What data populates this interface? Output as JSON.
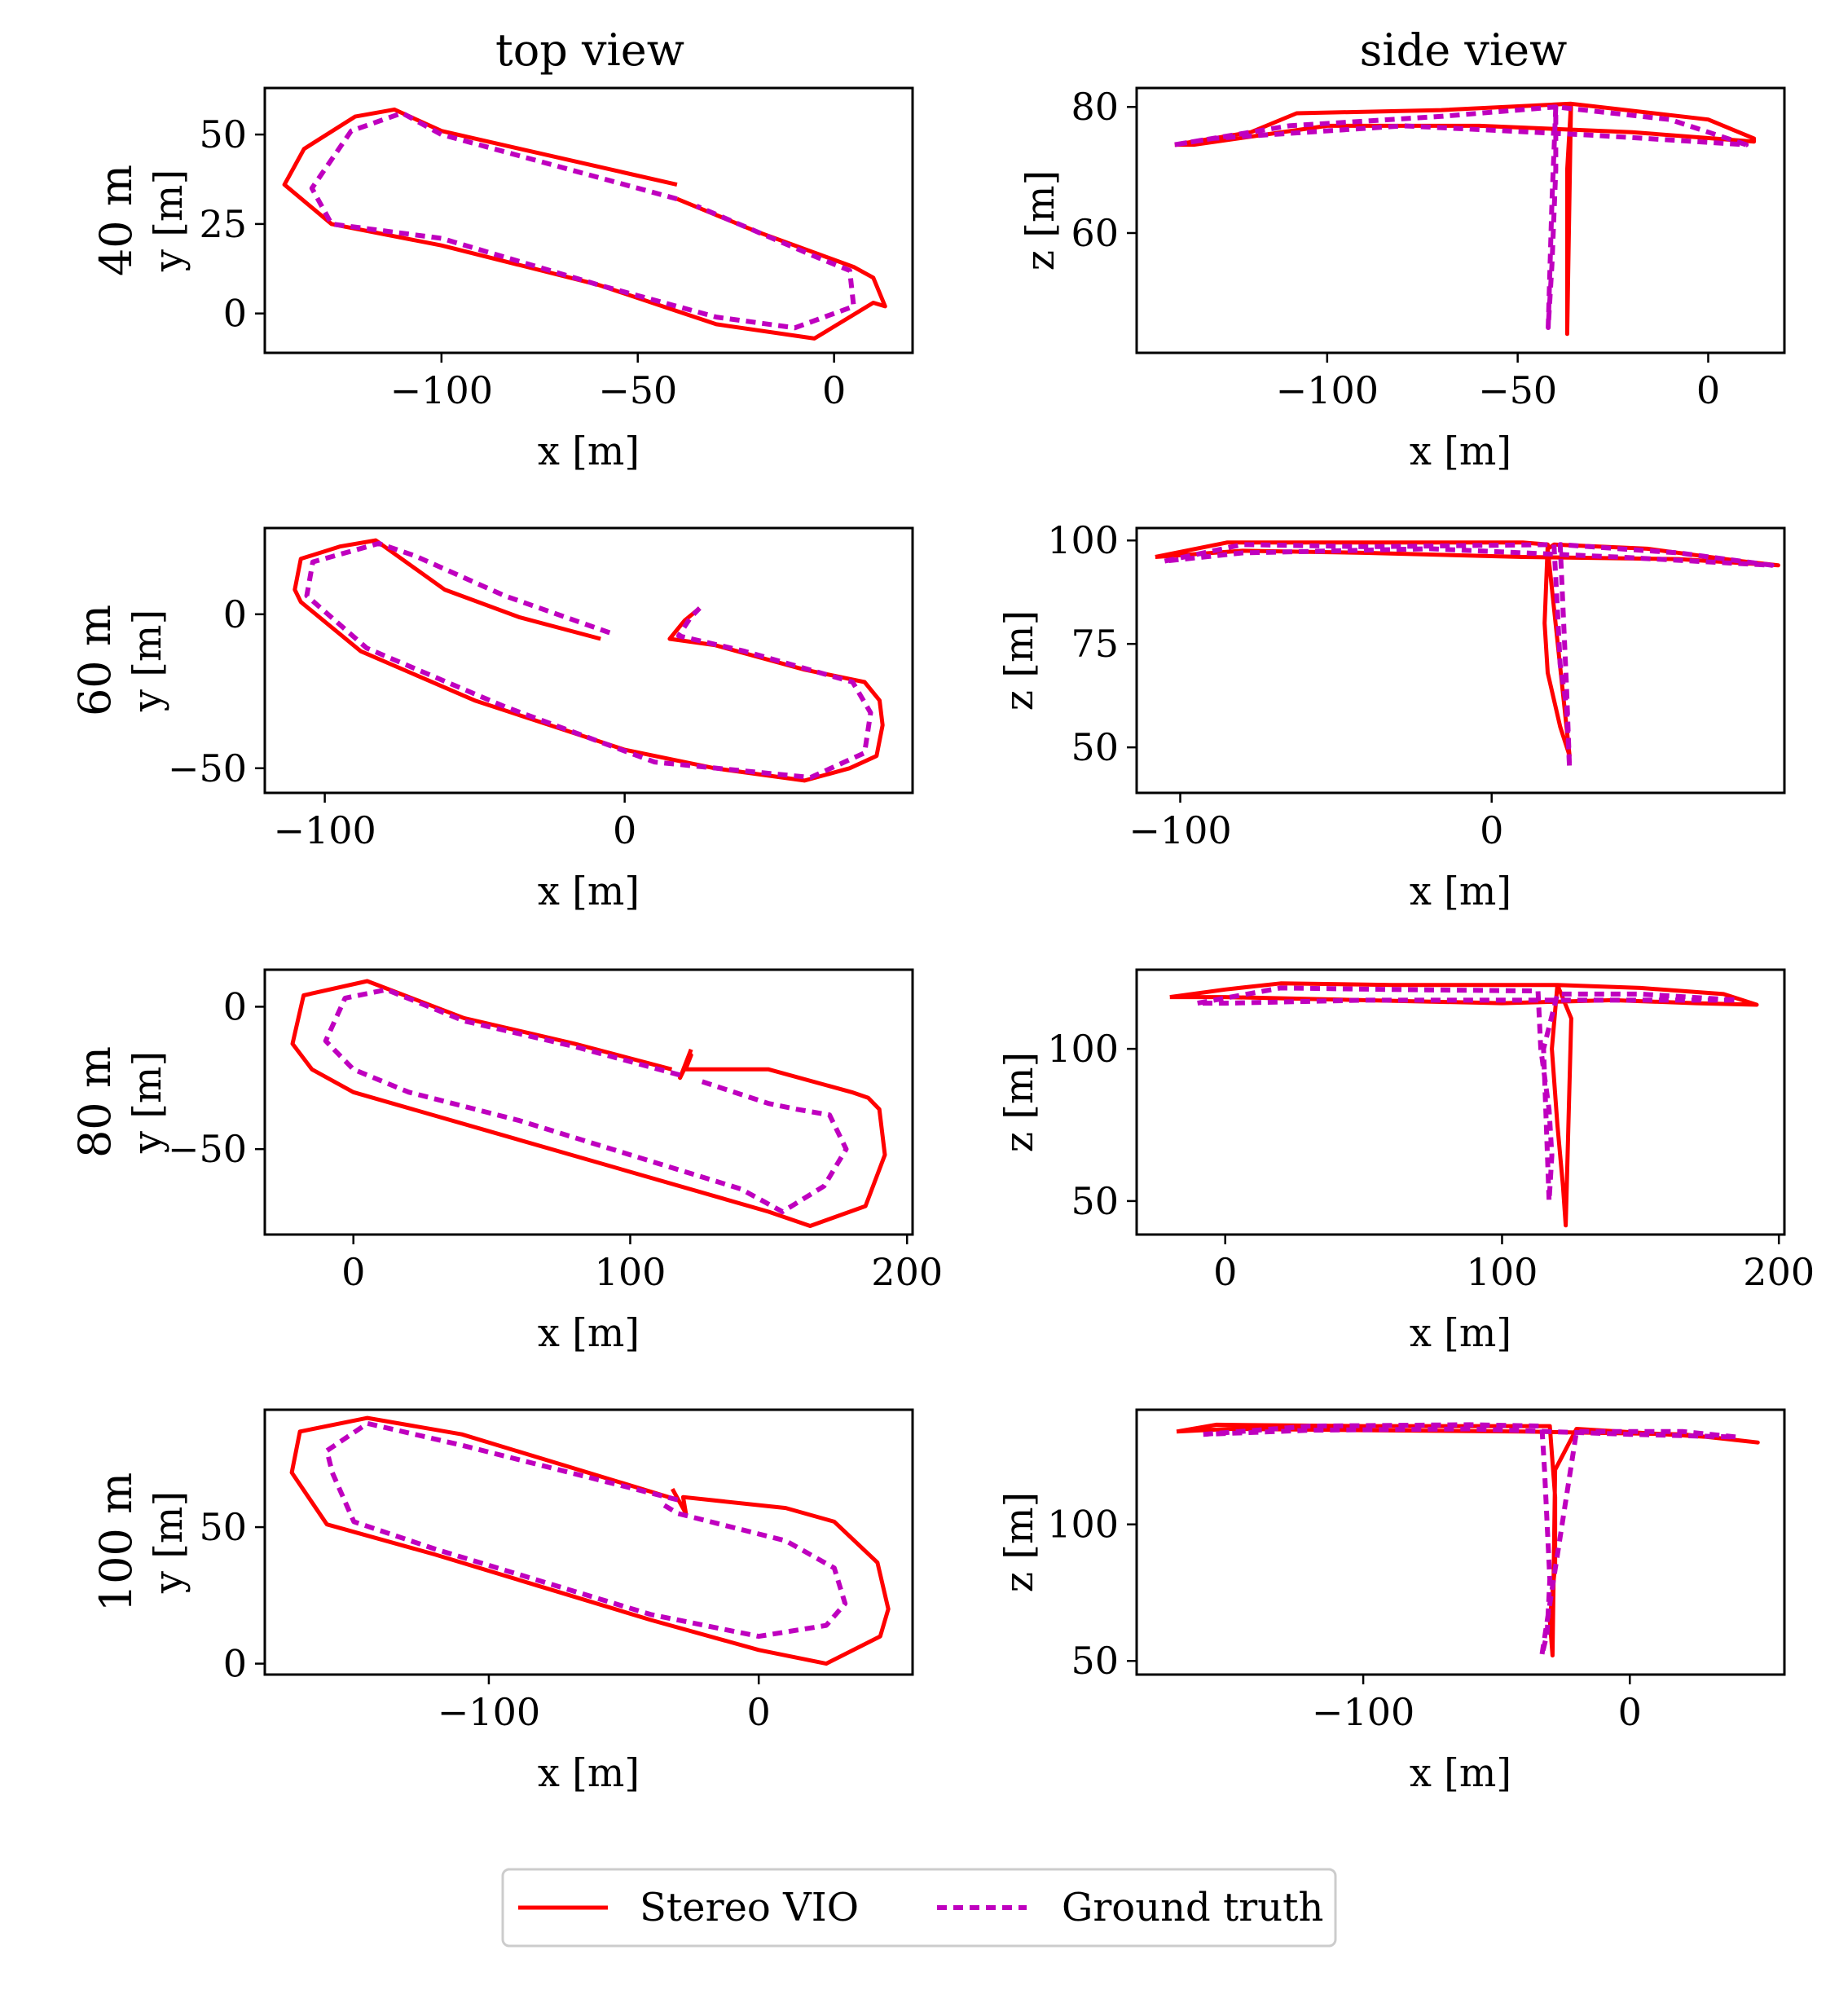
{
  "figure": {
    "column_titles": [
      "top view",
      "side view"
    ],
    "row_labels": [
      "40 m",
      "60 m",
      "80 m",
      "100 m"
    ],
    "legend": [
      {
        "label": "Stereo VIO",
        "color": "#ff0000",
        "dash": "solid"
      },
      {
        "label": "Ground truth",
        "color": "#bf00bf",
        "dash": "dashed"
      }
    ]
  },
  "chart_data": [
    {
      "type": "line",
      "panel": "40 m top view",
      "xlabel": "x [m]",
      "ylabel": "y [m]",
      "xlim": [
        -145,
        20
      ],
      "ylim": [
        -11,
        63
      ],
      "xticks": [
        -100,
        -50,
        0
      ],
      "yticks": [
        0,
        25,
        50
      ],
      "series": [
        {
          "name": "Stereo VIO",
          "x": [
            -40,
            -60,
            -80,
            -100,
            -112,
            -122,
            -135,
            -140,
            -128,
            -100,
            -60,
            -30,
            -5,
            10,
            13,
            10,
            5,
            -20,
            -40
          ],
          "y": [
            36,
            41,
            46,
            51,
            57,
            55,
            46,
            36,
            25,
            19,
            8,
            -3,
            -7,
            3,
            2,
            10,
            13,
            23,
            32
          ]
        },
        {
          "name": "Ground truth",
          "x": [
            -40,
            -60,
            -80,
            -100,
            -110,
            -123,
            -133,
            -128,
            -100,
            -60,
            -30,
            -10,
            5,
            4,
            -5,
            -35
          ],
          "y": [
            32,
            38,
            44,
            50,
            56,
            51,
            35,
            25,
            21,
            8,
            -1,
            -4,
            2,
            12,
            16,
            30
          ]
        }
      ]
    },
    {
      "type": "line",
      "panel": "40 m side view",
      "xlabel": "x [m]",
      "ylabel": "z [m]",
      "xlim": [
        -150,
        20
      ],
      "ylim": [
        41,
        83
      ],
      "xticks": [
        -100,
        -50,
        0
      ],
      "yticks": [
        60,
        80
      ],
      "series": [
        {
          "name": "Stereo VIO",
          "x": [
            -140,
            -120,
            -108,
            -70,
            -36,
            -37,
            -37,
            -37,
            -36,
            0,
            12,
            12,
            -20,
            -60,
            -100,
            -135,
            -140
          ],
          "y": [
            74,
            76,
            79,
            79.5,
            80.5,
            70,
            50,
            44,
            80.5,
            78,
            75,
            74.5,
            76,
            77,
            77,
            74,
            74
          ]
        },
        {
          "name": "Ground truth",
          "x": [
            -140,
            -110,
            -70,
            -40,
            -40,
            -41,
            -42,
            -41,
            -40,
            -10,
            10,
            -30,
            -80,
            -130,
            -140
          ],
          "y": [
            74,
            77,
            78.5,
            80,
            70,
            55,
            45,
            65,
            80,
            78,
            74,
            75.5,
            77,
            75,
            74
          ]
        }
      ]
    },
    {
      "type": "line",
      "panel": "60 m top view",
      "xlabel": "x [m]",
      "ylabel": "y [m]",
      "xlim": [
        -120,
        96
      ],
      "ylim": [
        -58,
        28
      ],
      "xticks": [
        -100,
        0
      ],
      "yticks": [
        -50,
        0
      ],
      "series": [
        {
          "name": "Stereo VIO",
          "x": [
            -8,
            -35,
            -60,
            -83,
            -95,
            -108,
            -110,
            -108,
            -88,
            -50,
            0,
            30,
            60,
            75,
            84,
            86,
            85,
            80,
            75,
            60,
            30,
            15,
            20,
            25
          ],
          "y": [
            -8,
            -1,
            8,
            24,
            22,
            18,
            8,
            4,
            -12,
            -28,
            -44,
            -50,
            -54,
            -50,
            -46,
            -36,
            -28,
            -22,
            -21,
            -18,
            -10,
            -8,
            -2,
            2
          ]
        },
        {
          "name": "Ground truth",
          "x": [
            -5,
            -40,
            -70,
            -82,
            -104,
            -106,
            -86,
            -40,
            10,
            62,
            80,
            82,
            76,
            40,
            18,
            22,
            25
          ],
          "y": [
            -6,
            6,
            19,
            23,
            17,
            6,
            -11,
            -30,
            -48,
            -53,
            -45,
            -32,
            -22,
            -12,
            -7,
            -1,
            2
          ]
        }
      ]
    },
    {
      "type": "line",
      "panel": "60 m side view",
      "xlabel": "x [m]",
      "ylabel": "z [m]",
      "xlim": [
        -114,
        94
      ],
      "ylim": [
        39,
        103
      ],
      "xticks": [
        -100,
        0
      ],
      "yticks": [
        50,
        75,
        100
      ],
      "series": [
        {
          "name": "Stereo VIO",
          "x": [
            -108,
            -85,
            -40,
            10,
            18,
            17,
            18,
            22,
            25,
            18,
            20,
            50,
            80,
            92,
            60,
            10,
            -40,
            -80,
            -108
          ],
          "y": [
            96,
            99.5,
            99.5,
            99.5,
            99,
            80,
            68,
            55,
            48,
            98,
            99,
            98,
            95,
            94,
            95.5,
            96,
            97,
            97.5,
            96
          ]
        },
        {
          "name": "Ground truth",
          "x": [
            -105,
            -80,
            -40,
            20,
            21,
            22,
            24,
            25,
            24,
            22,
            60,
            90,
            40,
            -20,
            -80,
            -105
          ],
          "y": [
            95,
            99,
            98.5,
            99,
            85,
            70,
            60,
            45,
            65,
            99,
            97,
            94,
            96,
            98,
            97,
            95
          ]
        }
      ]
    },
    {
      "type": "line",
      "panel": "80 m top view",
      "xlabel": "x [m]",
      "ylabel": "y [m]",
      "xlim": [
        -32,
        202
      ],
      "ylim": [
        -80,
        13
      ],
      "xticks": [
        0,
        100,
        200
      ],
      "yticks": [
        -50,
        0
      ],
      "series": [
        {
          "name": "Stereo VIO",
          "x": [
            115,
            80,
            40,
            5,
            -18,
            -22,
            -15,
            0,
            50,
            100,
            150,
            165,
            185,
            192,
            190,
            186,
            180,
            150,
            120,
            122,
            118,
            122
          ],
          "y": [
            -22,
            -13,
            -4,
            9,
            4,
            -13,
            -22,
            -30,
            -44,
            -58,
            -72,
            -77,
            -70,
            -52,
            -36,
            -32,
            -30,
            -22,
            -22,
            -17,
            -25,
            -15
          ]
        },
        {
          "name": "Ground truth",
          "x": [
            118,
            80,
            40,
            12,
            -3,
            -10,
            0,
            20,
            60,
            100,
            140,
            155,
            170,
            178,
            172,
            160,
            150,
            125
          ],
          "y": [
            -24,
            -14,
            -5,
            6,
            3,
            -12,
            -22,
            -30,
            -40,
            -52,
            -64,
            -72,
            -63,
            -50,
            -38,
            -36,
            -34,
            -26
          ]
        }
      ]
    },
    {
      "type": "line",
      "panel": "80 m side view",
      "xlabel": "x [m]",
      "ylabel": "z [m]",
      "xlim": [
        -32,
        202
      ],
      "ylim": [
        39,
        126
      ],
      "xticks": [
        0,
        100,
        200
      ],
      "yticks": [
        50,
        100
      ],
      "series": [
        {
          "name": "Stereo VIO",
          "x": [
            -20,
            0,
            20,
            60,
            120,
            118,
            120,
            122,
            123,
            125,
            120,
            150,
            180,
            192,
            170,
            140,
            100,
            50,
            0,
            -20
          ],
          "y": [
            117,
            119.5,
            121.5,
            121,
            121,
            100,
            75,
            55,
            42,
            110,
            121,
            120,
            118,
            114.5,
            115,
            116,
            115,
            116,
            117,
            117
          ]
        },
        {
          "name": "Ground truth",
          "x": [
            -10,
            20,
            60,
            113,
            114,
            117,
            118,
            117,
            115,
            120,
            150,
            185,
            150,
            100,
            50,
            0,
            -10
          ],
          "y": [
            115,
            120,
            119.5,
            119,
            100,
            80,
            65,
            50,
            100,
            118,
            118,
            116,
            116,
            116,
            116,
            115,
            115
          ]
        }
      ]
    },
    {
      "type": "line",
      "panel": "100 m top view",
      "xlabel": "x [m]",
      "ylabel": "y [m]",
      "xlim": [
        -183,
        57
      ],
      "ylim": [
        -4,
        93
      ],
      "xticks": [
        -100,
        0
      ],
      "yticks": [
        0,
        50
      ],
      "series": [
        {
          "name": "Stereo VIO",
          "x": [
            -30,
            -70,
            -110,
            -145,
            -170,
            -173,
            -160,
            -120,
            -80,
            -40,
            0,
            25,
            45,
            48,
            44,
            28,
            10,
            -28,
            -27,
            -32
          ],
          "y": [
            60,
            72,
            84,
            90,
            85,
            70,
            51,
            40,
            28,
            16,
            5,
            0,
            10,
            20,
            37,
            52,
            57,
            61,
            55,
            64
          ]
        },
        {
          "name": "Ground truth",
          "x": [
            -30,
            -70,
            -110,
            -145,
            -160,
            -158,
            -150,
            -120,
            -80,
            -40,
            0,
            25,
            32,
            28,
            10,
            -30,
            -35
          ],
          "y": [
            60,
            70,
            80,
            88,
            78,
            70,
            52,
            42,
            30,
            18,
            10,
            14,
            22,
            35,
            45,
            55,
            58
          ]
        }
      ]
    },
    {
      "type": "line",
      "panel": "100 m side view",
      "xlabel": "x [m]",
      "ylabel": "z [m]",
      "xlim": [
        -185,
        58
      ],
      "ylim": [
        45,
        142
      ],
      "xticks": [
        -100,
        0
      ],
      "yticks": [
        50,
        100
      ],
      "series": [
        {
          "name": "Stereo VIO",
          "x": [
            -170,
            -155,
            -100,
            -30,
            -28,
            -28,
            -30,
            -29,
            -28,
            -20,
            30,
            48,
            20,
            -40,
            -100,
            -150,
            -170
          ],
          "y": [
            134,
            136.5,
            136,
            136,
            110,
            85,
            65,
            52,
            120,
            135,
            132,
            130,
            133,
            134,
            134.5,
            135,
            134
          ]
        },
        {
          "name": "Ground truth",
          "x": [
            -160,
            -120,
            -60,
            -33,
            -32,
            -31,
            -30,
            -31,
            -33,
            -20,
            20,
            40,
            0,
            -60,
            -120,
            -160
          ],
          "y": [
            133,
            136,
            136.5,
            136,
            120,
            100,
            80,
            60,
            52,
            134,
            134,
            132,
            133,
            135,
            134.5,
            133
          ]
        }
      ]
    }
  ]
}
